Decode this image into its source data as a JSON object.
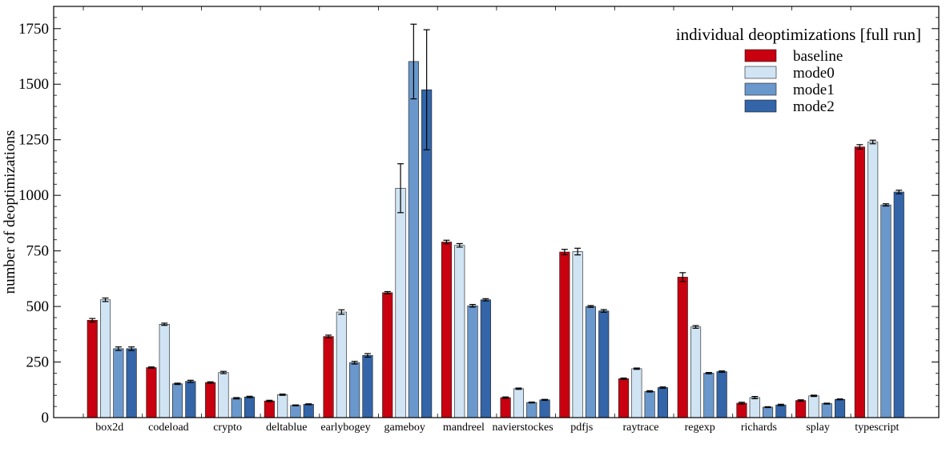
{
  "chart_data": {
    "type": "bar",
    "legend_title": "individual deoptimizations [full run]",
    "legend_position": "top-right",
    "ylabel": "number of deoptimizations",
    "xlabel": "",
    "ylim": [
      0,
      1850
    ],
    "yticks": [
      0,
      250,
      500,
      750,
      1000,
      1250,
      1500,
      1750
    ],
    "ytick_labels": [
      "0",
      "250",
      "500",
      "750",
      "1000",
      "1250",
      "1500",
      "1750"
    ],
    "grid": false,
    "categories": [
      "box2d",
      "codeload",
      "crypto",
      "deltablue",
      "earlybogey",
      "gameboy",
      "mandreel",
      "navierstockes",
      "pdfjs",
      "raytrace",
      "regexp",
      "richards",
      "splay",
      "typescript"
    ],
    "series": [
      {
        "name": "baseline",
        "color": "#c8000f",
        "values": [
          438,
          225,
          158,
          75,
          365,
          562,
          790,
          90,
          745,
          175,
          632,
          65,
          77,
          1218
        ],
        "errors": [
          8,
          3,
          3,
          3,
          6,
          5,
          8,
          3,
          12,
          3,
          20,
          4,
          3,
          10
        ]
      },
      {
        "name": "mode0",
        "color": "#d0e4f4",
        "values": [
          530,
          420,
          203,
          103,
          475,
          1032,
          775,
          130,
          747,
          220,
          408,
          90,
          98,
          1240
        ],
        "errors": [
          8,
          5,
          5,
          3,
          10,
          110,
          8,
          3,
          15,
          3,
          6,
          5,
          3,
          8
        ]
      },
      {
        "name": "mode1",
        "color": "#6a98cc",
        "values": [
          310,
          152,
          87,
          55,
          247,
          1602,
          503,
          68,
          500,
          118,
          200,
          47,
          63,
          957
        ],
        "errors": [
          8,
          3,
          3,
          2,
          6,
          168,
          6,
          2,
          4,
          3,
          3,
          2,
          2,
          5
        ]
      },
      {
        "name": "mode2",
        "color": "#3365a8",
        "values": [
          310,
          163,
          93,
          60,
          280,
          1475,
          530,
          80,
          480,
          135,
          207,
          57,
          82,
          1015
        ],
        "errors": [
          8,
          5,
          3,
          2,
          8,
          270,
          5,
          2,
          6,
          3,
          3,
          3,
          2,
          8
        ]
      }
    ]
  }
}
